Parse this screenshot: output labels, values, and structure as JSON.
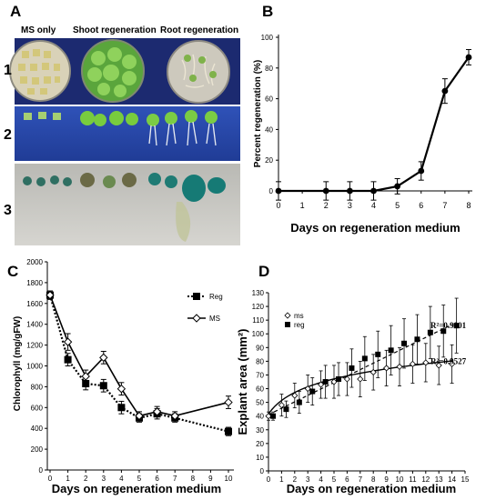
{
  "panel_a": {
    "letter": "A",
    "columns": [
      "MS only",
      "Shoot regeneration",
      "Root regeneration"
    ],
    "rows": [
      "1",
      "2",
      "3"
    ]
  },
  "chart_data": [
    {
      "panel": "B",
      "type": "line",
      "xlabel": "Days on regeneration medium",
      "ylabel": "Percent regeneration (%)",
      "x": [
        0,
        2,
        3,
        4,
        5,
        6,
        7,
        8
      ],
      "xticks": [
        "0",
        "1",
        "2",
        "3",
        "4",
        "5",
        "6",
        "7",
        "8"
      ],
      "ylim": [
        0,
        100
      ],
      "yticks": [
        "0",
        "20",
        "40",
        "60",
        "80",
        "100"
      ],
      "series": [
        {
          "values": [
            0,
            0,
            0,
            0,
            3,
            13,
            65,
            87
          ],
          "errors": [
            6,
            6,
            6,
            6,
            5,
            6,
            8,
            5
          ]
        }
      ]
    },
    {
      "panel": "C",
      "type": "line",
      "xlabel": "Days on regeneration medium",
      "ylabel": "Chlorophyll (mg/gFW)",
      "x": [
        0,
        1,
        2,
        3,
        4,
        5,
        6,
        7,
        10
      ],
      "xticks": [
        "0",
        "1",
        "2",
        "3",
        "4",
        "5",
        "6",
        "7",
        "8",
        "9",
        "10"
      ],
      "ylim": [
        0,
        2000
      ],
      "yticks": [
        "0",
        "200",
        "400",
        "600",
        "800",
        "1000",
        "1200",
        "1400",
        "1600",
        "1800",
        "2000"
      ],
      "legend_position": "top-right",
      "series": [
        {
          "name": "Reg",
          "values": [
            1680,
            1060,
            830,
            810,
            600,
            500,
            540,
            500,
            370
          ],
          "errors": [
            40,
            60,
            60,
            60,
            60,
            40,
            50,
            40,
            40
          ]
        },
        {
          "name": "MS",
          "values": [
            1680,
            1230,
            900,
            1080,
            780,
            520,
            560,
            520,
            650
          ],
          "errors": [
            40,
            80,
            60,
            60,
            60,
            40,
            50,
            40,
            60
          ]
        }
      ]
    },
    {
      "panel": "D",
      "type": "scatter",
      "xlabel": "Days on regeneration medium",
      "ylabel": "Explant area (mm²)",
      "x": [
        0,
        1,
        2,
        3,
        4,
        5,
        6,
        7,
        8,
        9,
        10,
        11,
        12,
        13,
        14
      ],
      "xticks": [
        "0",
        "1",
        "2",
        "3",
        "4",
        "5",
        "6",
        "7",
        "8",
        "9",
        "10",
        "11",
        "12",
        "13",
        "14",
        "15"
      ],
      "ylim": [
        0,
        130
      ],
      "yticks": [
        "0",
        "10",
        "20",
        "30",
        "40",
        "50",
        "60",
        "70",
        "80",
        "90",
        "100",
        "110",
        "120",
        "130"
      ],
      "legend_position": "top-left",
      "series": [
        {
          "name": "ms",
          "values": [
            40,
            48,
            55,
            60,
            63,
            65,
            67,
            67,
            72,
            75,
            76,
            78,
            79,
            77,
            78
          ],
          "errors": [
            3,
            8,
            9,
            10,
            10,
            12,
            12,
            13,
            13,
            13,
            14,
            14,
            14,
            14,
            14
          ],
          "fit_r2": "R²=0.9527"
        },
        {
          "name": "reg",
          "values": [
            40,
            45,
            50,
            58,
            65,
            67,
            75,
            82,
            85,
            88,
            93,
            96,
            101,
            102,
            106
          ],
          "errors": [
            3,
            6,
            8,
            10,
            12,
            12,
            14,
            16,
            17,
            18,
            18,
            18,
            19,
            19,
            20
          ],
          "fit_r2": "R²=0.9801"
        }
      ]
    }
  ]
}
